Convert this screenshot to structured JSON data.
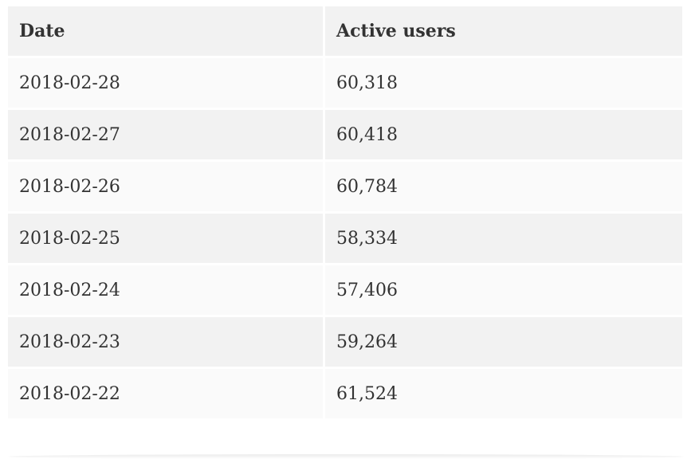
{
  "table": {
    "header": [
      "Date",
      "Active users"
    ],
    "rows": [
      [
        "2018-02-28",
        "60,318"
      ],
      [
        "2018-02-27",
        "60,418"
      ],
      [
        "2018-02-26",
        "60,784"
      ],
      [
        "2018-02-25",
        "58,334"
      ],
      [
        "2018-02-24",
        "57,406"
      ],
      [
        "2018-02-23",
        "59,264"
      ],
      [
        "2018-02-22",
        "61,524"
      ]
    ]
  }
}
